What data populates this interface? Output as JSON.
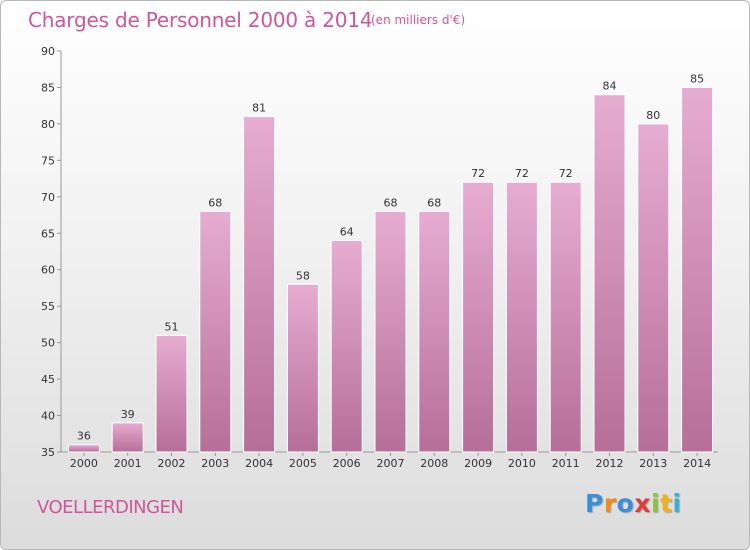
{
  "header": {
    "title": "Charges de Personnel 2000 à 2014",
    "subtitle": "(en milliers d'€)"
  },
  "footer": {
    "commune": "VOELLERDINGEN",
    "logo": "Proxiti"
  },
  "colors": {
    "bar_top": "#e7acd1",
    "bar_bottom": "#b56f98",
    "title": "#d0569a"
  },
  "chart_data": {
    "type": "bar",
    "title": "Charges de Personnel 2000 à 2014",
    "subtitle": "(en milliers d'€)",
    "categories": [
      "2000",
      "2001",
      "2002",
      "2003",
      "2004",
      "2005",
      "2006",
      "2007",
      "2008",
      "2009",
      "2010",
      "2011",
      "2012",
      "2013",
      "2014"
    ],
    "values": [
      36,
      39,
      51,
      68,
      81,
      58,
      64,
      68,
      68,
      72,
      72,
      72,
      84,
      80,
      85
    ],
    "ylim": [
      35,
      90
    ],
    "yticks": [
      35,
      40,
      45,
      50,
      55,
      60,
      65,
      70,
      75,
      80,
      85,
      90
    ],
    "grid": false,
    "legend": "none",
    "data_labels": true
  }
}
